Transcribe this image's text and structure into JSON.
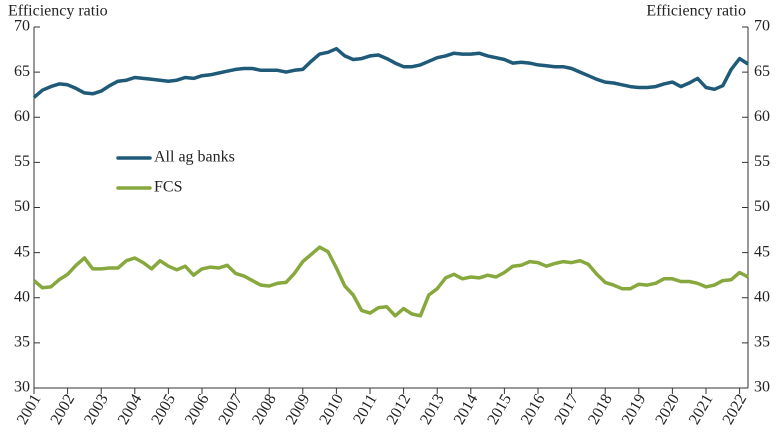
{
  "chart_data": {
    "type": "line",
    "ylabel": "Efficiency ratio",
    "y2label": "Efficiency ratio",
    "x": [
      2001,
      2001.25,
      2001.5,
      2001.75,
      2002,
      2002.25,
      2002.5,
      2002.75,
      2003,
      2003.25,
      2003.5,
      2003.75,
      2004,
      2004.25,
      2004.5,
      2004.75,
      2005,
      2005.25,
      2005.5,
      2005.75,
      2006,
      2006.25,
      2006.5,
      2006.75,
      2007,
      2007.25,
      2007.5,
      2007.75,
      2008,
      2008.25,
      2008.5,
      2008.75,
      2009,
      2009.25,
      2009.5,
      2009.75,
      2010,
      2010.25,
      2010.5,
      2010.75,
      2011,
      2011.25,
      2011.5,
      2011.75,
      2012,
      2012.25,
      2012.5,
      2012.75,
      2013,
      2013.25,
      2013.5,
      2013.75,
      2014,
      2014.25,
      2014.5,
      2014.75,
      2015,
      2015.25,
      2015.5,
      2015.75,
      2016,
      2016.25,
      2016.5,
      2016.75,
      2017,
      2017.25,
      2017.5,
      2017.75,
      2018,
      2018.25,
      2018.5,
      2018.75,
      2019,
      2019.25,
      2019.5,
      2019.75,
      2020,
      2020.25,
      2020.5,
      2020.75,
      2021,
      2021.25,
      2021.5,
      2021.75,
      2022,
      2022.25
    ],
    "series": [
      {
        "name": "All ag banks",
        "color": "#1f5a78",
        "values": [
          62.2,
          63.0,
          63.4,
          63.7,
          63.6,
          63.2,
          62.7,
          62.6,
          62.9,
          63.5,
          64.0,
          64.1,
          64.4,
          64.3,
          64.2,
          64.1,
          64.0,
          64.1,
          64.4,
          64.3,
          64.6,
          64.7,
          64.9,
          65.1,
          65.3,
          65.4,
          65.4,
          65.2,
          65.2,
          65.2,
          65.0,
          65.2,
          65.3,
          66.2,
          67.0,
          67.2,
          67.6,
          66.8,
          66.4,
          66.5,
          66.8,
          66.9,
          66.5,
          66.0,
          65.6,
          65.6,
          65.8,
          66.2,
          66.6,
          66.8,
          67.1,
          67.0,
          67.0,
          67.1,
          66.8,
          66.6,
          66.4,
          66.0,
          66.1,
          66.0,
          65.8,
          65.7,
          65.6,
          65.6,
          65.4,
          65.0,
          64.6,
          64.2,
          63.9,
          63.8,
          63.6,
          63.4,
          63.3,
          63.3,
          63.4,
          63.7,
          63.9,
          63.4,
          63.8,
          64.3,
          63.3,
          63.1,
          63.5,
          65.3,
          66.5,
          65.9
        ]
      },
      {
        "name": "FCS",
        "color": "#86a83c",
        "values": [
          41.9,
          41.1,
          41.2,
          42.0,
          42.6,
          43.6,
          44.4,
          43.2,
          43.2,
          43.3,
          43.3,
          44.1,
          44.4,
          43.9,
          43.2,
          44.1,
          43.5,
          43.1,
          43.5,
          42.5,
          43.2,
          43.4,
          43.3,
          43.6,
          42.7,
          42.4,
          41.9,
          41.4,
          41.3,
          41.6,
          41.7,
          42.7,
          44.0,
          44.8,
          45.6,
          45.1,
          43.3,
          41.3,
          40.3,
          38.6,
          38.3,
          38.9,
          39.0,
          38.0,
          38.8,
          38.2,
          38.0,
          40.3,
          41.0,
          42.2,
          42.6,
          42.1,
          42.3,
          42.2,
          42.5,
          42.3,
          42.8,
          43.5,
          43.6,
          44.0,
          43.9,
          43.5,
          43.8,
          44.0,
          43.9,
          44.1,
          43.7,
          42.6,
          41.7,
          41.4,
          41.0,
          41.0,
          41.5,
          41.4,
          41.6,
          42.1,
          42.1,
          41.8,
          41.8,
          41.6,
          41.2,
          41.4,
          41.9,
          42.0,
          42.8,
          42.3
        ]
      }
    ],
    "xlim": [
      2001,
      2022.25
    ],
    "xticks": [
      2001,
      2002,
      2003,
      2004,
      2005,
      2006,
      2007,
      2008,
      2009,
      2010,
      2011,
      2012,
      2013,
      2014,
      2015,
      2016,
      2017,
      2018,
      2019,
      2020,
      2021,
      2022
    ],
    "ylim": [
      30,
      70
    ],
    "yticks": [
      30,
      35,
      40,
      45,
      50,
      55,
      60,
      65,
      70
    ],
    "y2lim": [
      30,
      70
    ],
    "y2ticks": [
      30,
      35,
      40,
      45,
      50,
      55,
      60,
      65,
      70
    ],
    "legend": "center left",
    "grid": false
  }
}
